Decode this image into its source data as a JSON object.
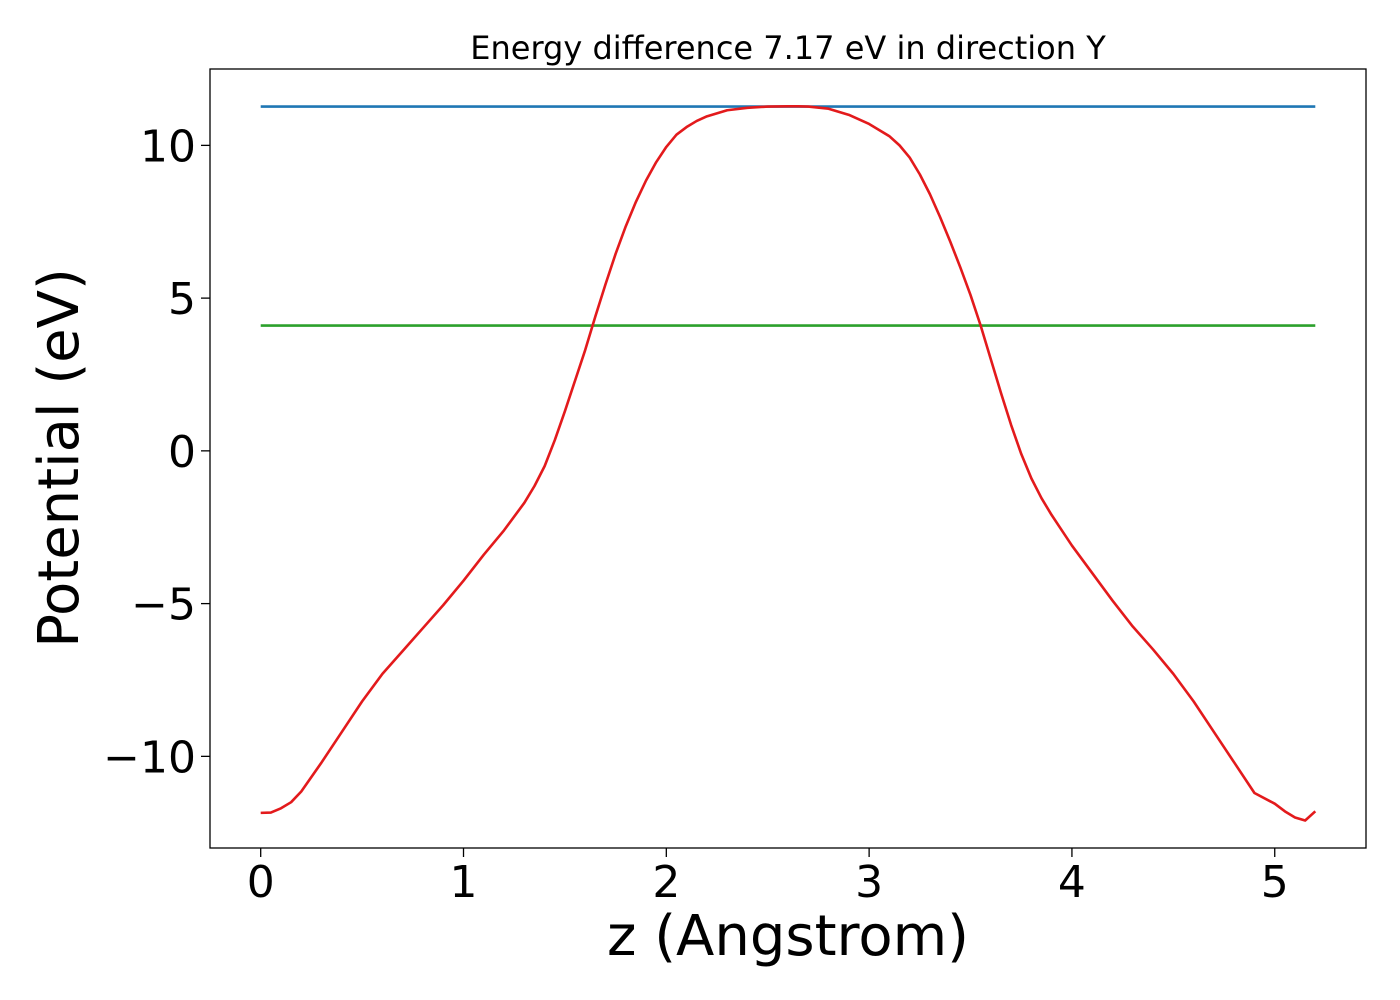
{
  "chart_data": {
    "type": "line",
    "title": "Energy difference 7.17 eV in direction Y",
    "xlabel": "z (Angstrom)",
    "ylabel": "Potential (eV)",
    "xlim": [
      -0.25,
      5.45
    ],
    "ylim": [
      -13.0,
      12.5
    ],
    "xticks": [
      0,
      1,
      2,
      3,
      4,
      5
    ],
    "xtick_labels": [
      "0",
      "1",
      "2",
      "3",
      "4",
      "5"
    ],
    "yticks": [
      -10,
      -5,
      0,
      5,
      10
    ],
    "ytick_labels": [
      "−10",
      "−5",
      "0",
      "5",
      "10"
    ],
    "grid": false,
    "series": [
      {
        "color": "#1f77b4",
        "x": [
          0.0,
          5.2
        ],
        "y": [
          11.27,
          11.27
        ]
      },
      {
        "color": "#2ca02c",
        "x": [
          0.0,
          5.2
        ],
        "y": [
          4.1,
          4.1
        ]
      },
      {
        "color": "#e31a1c",
        "x": [
          0.0,
          0.05,
          0.1,
          0.15,
          0.2,
          0.3,
          0.4,
          0.5,
          0.6,
          0.7,
          0.8,
          0.9,
          1.0,
          1.1,
          1.2,
          1.3,
          1.35,
          1.4,
          1.45,
          1.5,
          1.55,
          1.6,
          1.65,
          1.7,
          1.75,
          1.8,
          1.85,
          1.9,
          1.95,
          2.0,
          2.05,
          2.1,
          2.15,
          2.2,
          2.3,
          2.4,
          2.5,
          2.6,
          2.65,
          2.7,
          2.8,
          2.9,
          3.0,
          3.1,
          3.15,
          3.2,
          3.25,
          3.3,
          3.35,
          3.4,
          3.45,
          3.5,
          3.55,
          3.6,
          3.65,
          3.7,
          3.75,
          3.8,
          3.85,
          3.9,
          3.95,
          4.0,
          4.1,
          4.2,
          4.3,
          4.4,
          4.5,
          4.6,
          4.7,
          4.8,
          4.9,
          5.0,
          5.05,
          5.1,
          5.15,
          5.2
        ],
        "y": [
          -11.85,
          -11.84,
          -11.7,
          -11.5,
          -11.15,
          -10.2,
          -9.2,
          -8.2,
          -7.3,
          -6.55,
          -5.8,
          -5.05,
          -4.25,
          -3.4,
          -2.6,
          -1.7,
          -1.15,
          -0.5,
          0.35,
          1.3,
          2.3,
          3.3,
          4.4,
          5.45,
          6.45,
          7.35,
          8.15,
          8.85,
          9.45,
          9.95,
          10.35,
          10.6,
          10.8,
          10.95,
          11.15,
          11.23,
          11.27,
          11.28,
          11.28,
          11.27,
          11.2,
          11.0,
          10.7,
          10.3,
          10.0,
          9.6,
          9.05,
          8.4,
          7.65,
          6.85,
          6.0,
          5.1,
          4.1,
          3.0,
          1.9,
          0.85,
          -0.1,
          -0.9,
          -1.55,
          -2.1,
          -2.6,
          -3.1,
          -4.0,
          -4.9,
          -5.75,
          -6.5,
          -7.3,
          -8.2,
          -9.2,
          -10.2,
          -11.2,
          -11.55,
          -11.8,
          -12.0,
          -12.1,
          -11.8
        ]
      }
    ]
  }
}
